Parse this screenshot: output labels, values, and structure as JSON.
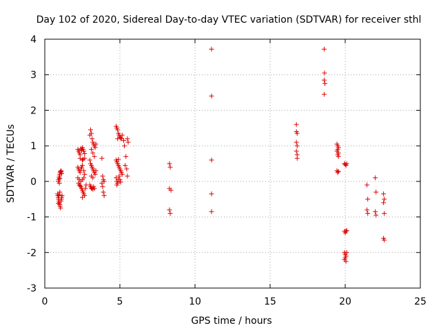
{
  "chart_data": {
    "type": "scatter",
    "title": "Day 102 of 2020, Sidereal Day-to-day VTEC variation (SDTVAR) for receiver sthl",
    "xlabel": "GPS time / hours",
    "ylabel": "SDTVAR / TECUs",
    "xlim": [
      0,
      25
    ],
    "ylim": [
      -3,
      4
    ],
    "xticks": [
      0,
      5,
      10,
      15,
      20,
      25
    ],
    "yticks": [
      -3,
      -2,
      -1,
      0,
      1,
      2,
      3,
      4
    ],
    "xtick_labels": [
      "0",
      "5",
      "10",
      "15",
      "20",
      "25"
    ],
    "ytick_labels": [
      "-3",
      "-2",
      "-1",
      "0",
      "1",
      "2",
      "3",
      "4"
    ],
    "grid": true,
    "marker": "+",
    "series": [
      {
        "name": "SDTVAR",
        "color": "#dd0000",
        "points": [
          [
            0.85,
            -0.35
          ],
          [
            0.87,
            -0.4
          ],
          [
            0.9,
            -0.45
          ],
          [
            0.92,
            -0.5
          ],
          [
            0.95,
            -0.55
          ],
          [
            0.97,
            -0.6
          ],
          [
            1.0,
            -0.65
          ],
          [
            1.02,
            -0.7
          ],
          [
            1.05,
            -0.75
          ],
          [
            0.9,
            -0.62
          ],
          [
            1.08,
            -0.55
          ],
          [
            1.1,
            -0.5
          ],
          [
            1.12,
            -0.45
          ],
          [
            1.15,
            -0.4
          ],
          [
            0.95,
            -0.38
          ],
          [
            1.0,
            -0.3
          ],
          [
            0.9,
            0.0
          ],
          [
            0.92,
            0.05
          ],
          [
            0.95,
            0.1
          ],
          [
            0.97,
            0.15
          ],
          [
            1.0,
            0.2
          ],
          [
            1.02,
            0.25
          ],
          [
            1.05,
            0.28
          ],
          [
            1.08,
            0.3
          ],
          [
            1.1,
            0.27
          ],
          [
            1.12,
            0.22
          ],
          [
            0.97,
            -0.05
          ],
          [
            1.0,
            0.08
          ],
          [
            2.2,
            0.9
          ],
          [
            2.25,
            0.85
          ],
          [
            2.3,
            0.8
          ],
          [
            2.35,
            0.75
          ],
          [
            2.4,
            0.92
          ],
          [
            2.45,
            0.88
          ],
          [
            2.5,
            0.95
          ],
          [
            2.55,
            0.9
          ],
          [
            2.6,
            0.85
          ],
          [
            2.65,
            0.78
          ],
          [
            2.35,
            0.65
          ],
          [
            2.5,
            0.6
          ],
          [
            2.55,
            0.62
          ],
          [
            2.65,
            0.65
          ],
          [
            2.2,
            0.4
          ],
          [
            2.25,
            0.35
          ],
          [
            2.3,
            0.3
          ],
          [
            2.35,
            0.25
          ],
          [
            2.4,
            0.35
          ],
          [
            2.45,
            0.4
          ],
          [
            2.5,
            0.45
          ],
          [
            2.6,
            0.3
          ],
          [
            2.65,
            0.2
          ],
          [
            2.2,
            0.1
          ],
          [
            2.3,
            0.05
          ],
          [
            2.4,
            0.0
          ],
          [
            2.5,
            0.05
          ],
          [
            2.6,
            0.1
          ],
          [
            2.25,
            -0.05
          ],
          [
            2.3,
            -0.1
          ],
          [
            2.4,
            -0.15
          ],
          [
            2.45,
            -0.2
          ],
          [
            2.5,
            -0.25
          ],
          [
            2.55,
            -0.3
          ],
          [
            2.6,
            -0.35
          ],
          [
            2.65,
            -0.4
          ],
          [
            2.5,
            -0.45
          ],
          [
            2.35,
            -0.12
          ],
          [
            2.7,
            -0.2
          ],
          [
            2.75,
            -0.1
          ],
          [
            3.0,
            1.3
          ],
          [
            3.05,
            1.45
          ],
          [
            3.1,
            1.35
          ],
          [
            3.15,
            1.2
          ],
          [
            3.2,
            1.1
          ],
          [
            3.25,
            1.05
          ],
          [
            3.3,
            1.0
          ],
          [
            3.35,
            0.95
          ],
          [
            3.4,
            1.05
          ],
          [
            3.1,
            0.9
          ],
          [
            3.2,
            0.8
          ],
          [
            3.3,
            0.7
          ],
          [
            3.0,
            0.6
          ],
          [
            3.05,
            0.5
          ],
          [
            3.1,
            0.45
          ],
          [
            3.15,
            0.4
          ],
          [
            3.2,
            0.35
          ],
          [
            3.25,
            0.3
          ],
          [
            3.3,
            0.25
          ],
          [
            3.35,
            0.2
          ],
          [
            3.4,
            0.3
          ],
          [
            3.1,
            0.15
          ],
          [
            3.2,
            0.1
          ],
          [
            3.0,
            -0.1
          ],
          [
            3.05,
            -0.15
          ],
          [
            3.1,
            -0.2
          ],
          [
            3.15,
            -0.18
          ],
          [
            3.2,
            -0.22
          ],
          [
            3.25,
            -0.15
          ],
          [
            3.3,
            -0.2
          ],
          [
            3.8,
            0.65
          ],
          [
            3.85,
            0.15
          ],
          [
            3.9,
            0.05
          ],
          [
            3.95,
            0.0
          ],
          [
            3.8,
            -0.05
          ],
          [
            3.85,
            -0.15
          ],
          [
            3.9,
            -0.3
          ],
          [
            3.95,
            -0.4
          ],
          [
            4.75,
            1.55
          ],
          [
            4.8,
            1.5
          ],
          [
            4.85,
            1.45
          ],
          [
            4.9,
            1.35
          ],
          [
            4.95,
            1.3
          ],
          [
            5.0,
            1.25
          ],
          [
            5.05,
            1.22
          ],
          [
            5.1,
            1.2
          ],
          [
            5.15,
            1.3
          ],
          [
            4.85,
            1.2
          ],
          [
            4.75,
            0.6
          ],
          [
            4.8,
            0.55
          ],
          [
            4.85,
            0.5
          ],
          [
            4.9,
            0.45
          ],
          [
            4.95,
            0.4
          ],
          [
            5.0,
            0.35
          ],
          [
            5.05,
            0.3
          ],
          [
            5.1,
            0.25
          ],
          [
            5.15,
            0.2
          ],
          [
            4.9,
            0.62
          ],
          [
            4.75,
            0.1
          ],
          [
            4.8,
            0.0
          ],
          [
            4.85,
            -0.05
          ],
          [
            4.9,
            0.05
          ],
          [
            4.95,
            0.15
          ],
          [
            5.0,
            0.05
          ],
          [
            5.05,
            -0.02
          ],
          [
            4.8,
            -0.1
          ],
          [
            5.25,
            1.15
          ],
          [
            5.3,
            1.0
          ],
          [
            5.4,
            0.7
          ],
          [
            5.35,
            0.45
          ],
          [
            5.45,
            0.35
          ],
          [
            5.5,
            0.15
          ],
          [
            5.5,
            1.2
          ],
          [
            5.55,
            1.1
          ],
          [
            8.3,
            0.5
          ],
          [
            8.35,
            0.4
          ],
          [
            8.3,
            -0.2
          ],
          [
            8.4,
            -0.25
          ],
          [
            8.3,
            -0.8
          ],
          [
            8.35,
            -0.9
          ],
          [
            11.1,
            3.72
          ],
          [
            11.1,
            2.4
          ],
          [
            11.1,
            0.6
          ],
          [
            11.1,
            -0.35
          ],
          [
            11.1,
            -0.85
          ],
          [
            16.75,
            1.6
          ],
          [
            16.75,
            1.4
          ],
          [
            16.8,
            1.35
          ],
          [
            16.75,
            1.1
          ],
          [
            16.8,
            1.0
          ],
          [
            16.75,
            0.85
          ],
          [
            16.8,
            0.75
          ],
          [
            16.8,
            0.65
          ],
          [
            18.6,
            3.72
          ],
          [
            18.62,
            3.05
          ],
          [
            18.6,
            2.85
          ],
          [
            18.65,
            2.75
          ],
          [
            18.6,
            2.45
          ],
          [
            19.45,
            1.05
          ],
          [
            19.5,
            1.0
          ],
          [
            19.55,
            0.95
          ],
          [
            19.5,
            0.9
          ],
          [
            19.45,
            0.85
          ],
          [
            19.55,
            0.8
          ],
          [
            19.5,
            0.75
          ],
          [
            19.55,
            0.7
          ],
          [
            19.45,
            0.3
          ],
          [
            19.5,
            0.25
          ],
          [
            19.55,
            0.28
          ],
          [
            19.95,
            0.5
          ],
          [
            20.0,
            0.48
          ],
          [
            20.05,
            0.45
          ],
          [
            20.1,
            0.5
          ],
          [
            19.95,
            -1.4
          ],
          [
            20.0,
            -1.45
          ],
          [
            20.05,
            -1.4
          ],
          [
            20.1,
            -1.38
          ],
          [
            19.95,
            -2.0
          ],
          [
            20.0,
            -2.05
          ],
          [
            20.05,
            -2.1
          ],
          [
            20.0,
            -2.15
          ],
          [
            19.95,
            -2.2
          ],
          [
            20.05,
            -2.25
          ],
          [
            20.1,
            -2.0
          ],
          [
            21.45,
            -0.1
          ],
          [
            21.5,
            -0.5
          ],
          [
            21.45,
            -0.8
          ],
          [
            21.5,
            -0.9
          ],
          [
            22.0,
            0.1
          ],
          [
            22.05,
            -0.3
          ],
          [
            22.0,
            -0.85
          ],
          [
            22.05,
            -0.95
          ],
          [
            22.55,
            -0.35
          ],
          [
            22.6,
            -0.5
          ],
          [
            22.55,
            -0.6
          ],
          [
            22.6,
            -0.9
          ],
          [
            22.55,
            -1.6
          ],
          [
            22.6,
            -1.65
          ]
        ]
      }
    ]
  }
}
